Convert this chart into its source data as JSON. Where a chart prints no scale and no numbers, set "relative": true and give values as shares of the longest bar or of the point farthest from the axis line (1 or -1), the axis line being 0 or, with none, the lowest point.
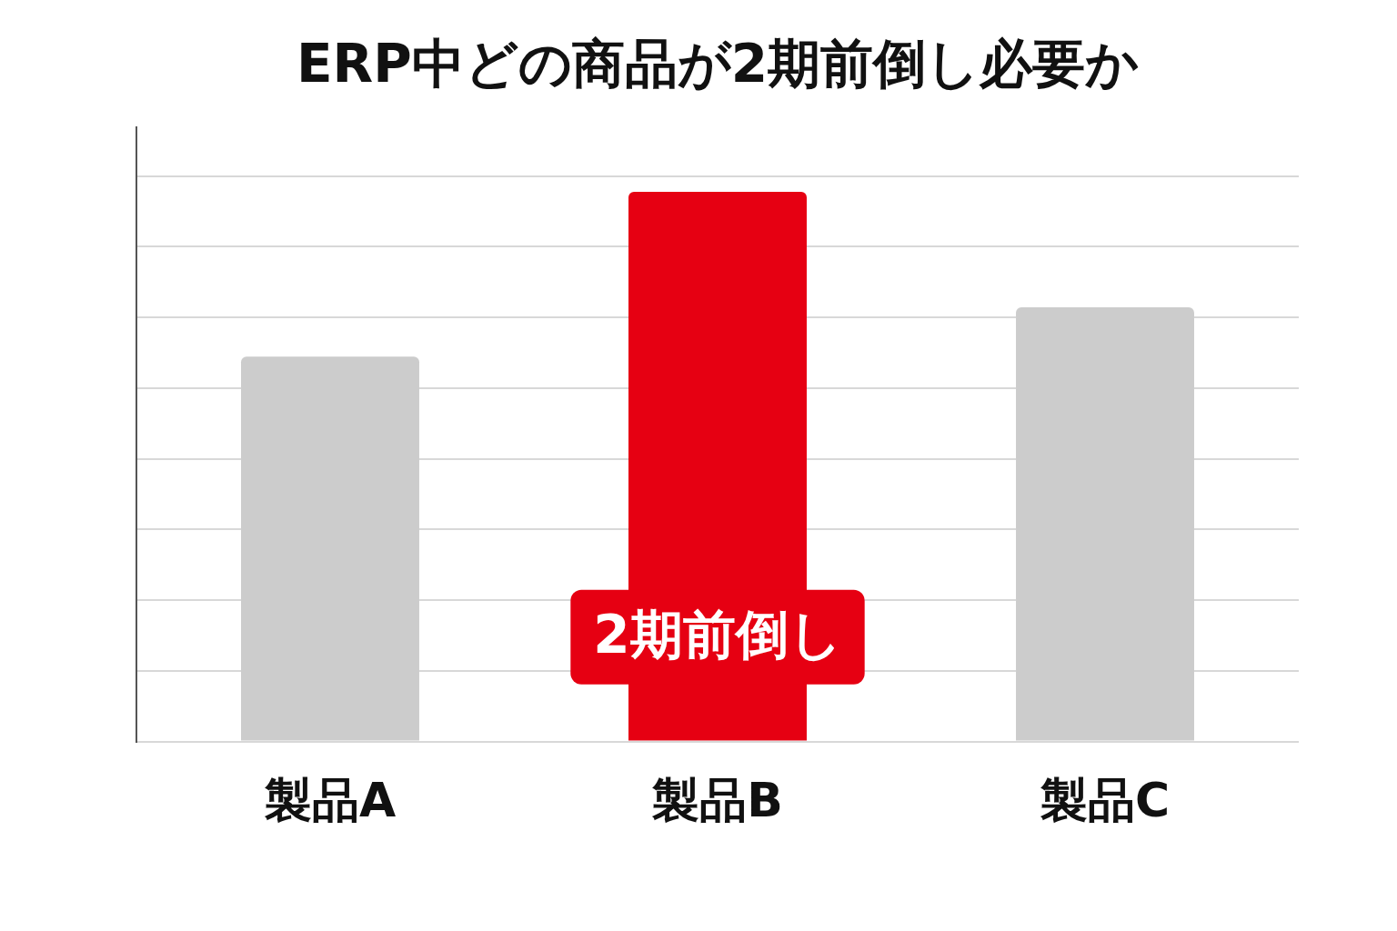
{
  "chart_data": {
    "type": "bar",
    "title": "ERP中どの商品が2期前倒し必要か",
    "categories": [
      "製品A",
      "製品B",
      "製品C"
    ],
    "colors": [
      "#cccccc",
      "#e60012",
      "#cccccc"
    ],
    "values": [
      0.7,
      1,
      0.79
    ],
    "relative": true,
    "grid": "y",
    "legend": false,
    "annotations": [
      "2期前倒し"
    ]
  }
}
